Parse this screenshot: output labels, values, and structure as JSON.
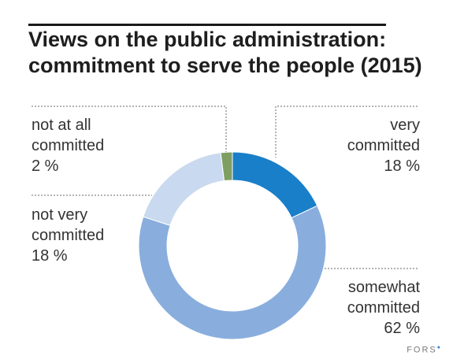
{
  "title": {
    "line1": "Views on the public administration:",
    "line2": "commitment to serve the people (2015)"
  },
  "brand": "FORS",
  "chart_data": {
    "type": "pie",
    "subtype": "donut",
    "title": "Views on the public administration: commitment to serve the people (2015)",
    "unit": "%",
    "slices": [
      {
        "name": "very committed",
        "value": 18,
        "color": "#1a7fc9",
        "label_lines": [
          "very",
          "committed",
          "18 %"
        ]
      },
      {
        "name": "somewhat committed",
        "value": 62,
        "color": "#89aedd",
        "label_lines": [
          "somewhat",
          "committed",
          "62 %"
        ]
      },
      {
        "name": "not very committed",
        "value": 18,
        "color": "#c9d9ef",
        "label_lines": [
          "not very",
          "committed",
          "18 %"
        ]
      },
      {
        "name": "not at all committed",
        "value": 2,
        "color": "#7f9f62",
        "label_lines": [
          "not at all",
          "committed",
          "2 %"
        ]
      }
    ]
  }
}
